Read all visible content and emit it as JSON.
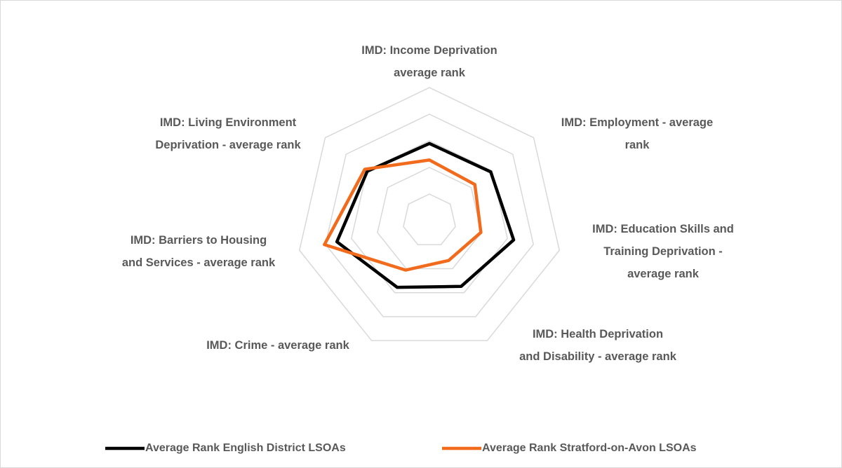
{
  "chart_data": {
    "type": "radar",
    "categories": [
      "IMD: Income Deprivation average rank",
      "IMD: Employment - average rank",
      "IMD: Education Skills and Training Deprivation - average rank",
      "IMD: Health Deprivation and Disability - average rank",
      "IMD: Crime - average rank",
      "IMD: Barriers to Housing and Services - average rank",
      "IMD: Living Environment Deprivation - average rank"
    ],
    "series": [
      {
        "name": "Average Rank English District LSOAs",
        "color": "#000000",
        "values": [
          14500,
          14700,
          16200,
          13700,
          13900,
          17800,
          14900
        ]
      },
      {
        "name": "Average Rank Stratford-on-Avon LSOAs",
        "color": "#f26b1d",
        "values": [
          11400,
          10900,
          9900,
          8300,
          10300,
          20200,
          15500
        ]
      }
    ],
    "ylim": [
      0,
      25000
    ],
    "yticks": [
      0,
      5000,
      10000,
      15000,
      20000,
      25000
    ],
    "grid": true,
    "legend": "bottom"
  }
}
